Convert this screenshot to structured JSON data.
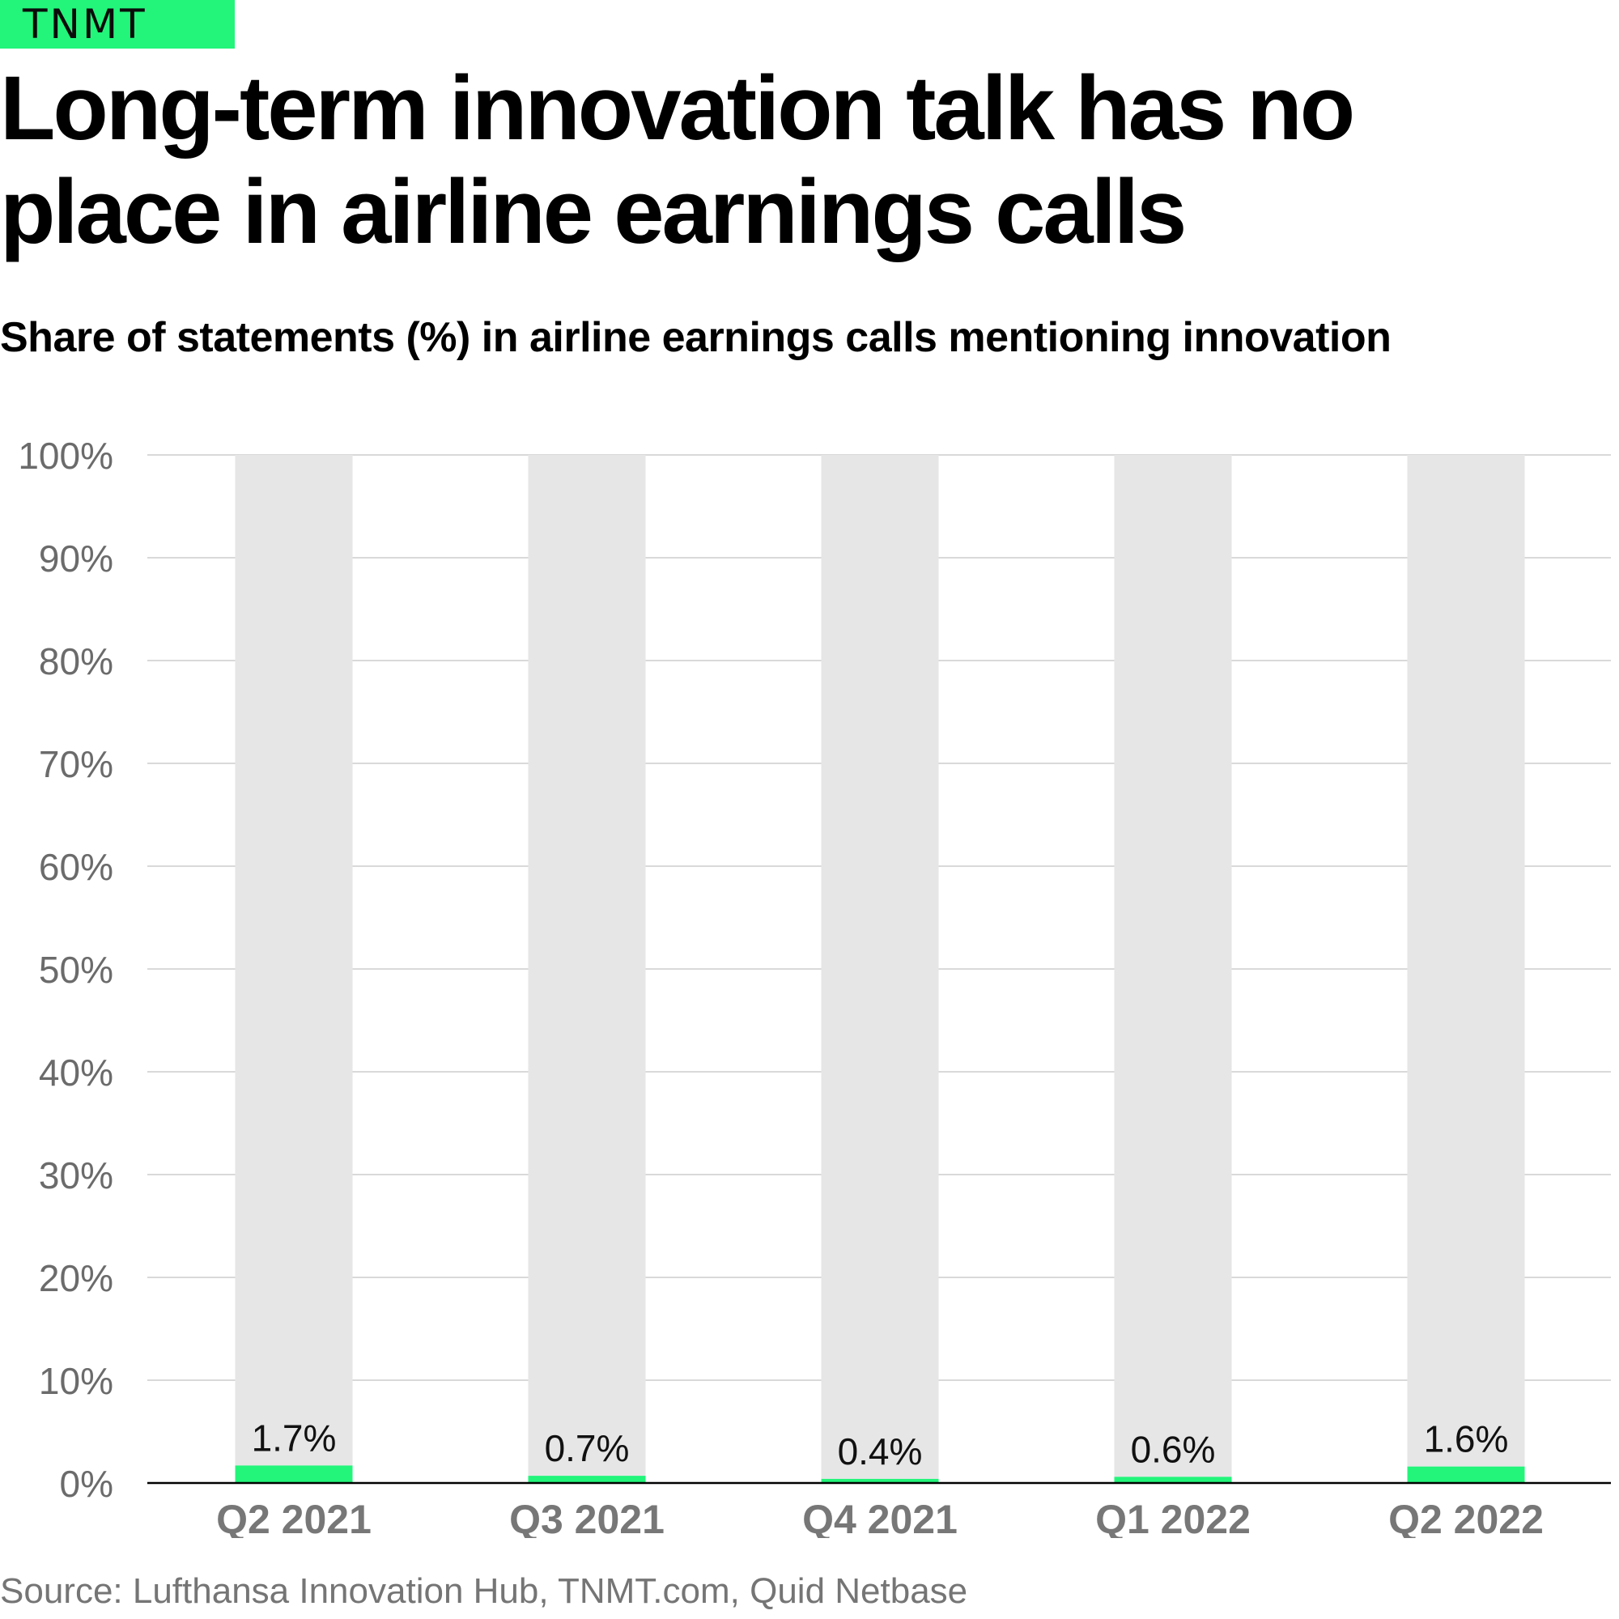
{
  "brand": {
    "logo_text": "TNMT",
    "accent_color": "#22f57a"
  },
  "title": "Long-term innovation talk has no place in airline earnings calls",
  "subtitle": "Share of statements (%) in airline earnings calls mentioning innovation",
  "source": "Source: Lufthansa Innovation Hub, TNMT.com, Quid Netbase",
  "chart_data": {
    "type": "bar",
    "title": "Long-term innovation talk has no place in airline earnings calls",
    "subtitle": "Share of statements (%) in airline earnings calls mentioning innovation",
    "xlabel": "",
    "ylabel": "",
    "categories": [
      "Q2 2021",
      "Q3 2021",
      "Q4 2021",
      "Q1 2022",
      "Q2 2022"
    ],
    "values": [
      1.7,
      0.7,
      0.4,
      0.6,
      1.6
    ],
    "data_labels": [
      "1.7%",
      "0.7%",
      "0.4%",
      "0.6%",
      "1.6%"
    ],
    "background_values": [
      100,
      100,
      100,
      100,
      100
    ],
    "ylim": [
      0,
      100
    ],
    "yticks": [
      0,
      10,
      20,
      30,
      40,
      50,
      60,
      70,
      80,
      90,
      100
    ],
    "ytick_labels": [
      "0%",
      "10%",
      "20%",
      "30%",
      "40%",
      "50%",
      "60%",
      "70%",
      "80%",
      "90%",
      "100%"
    ],
    "grid": true,
    "legend": "none",
    "colors": {
      "bar": "#22f57a",
      "background_bar": "#e6e6e6",
      "grid": "#d9d9d9",
      "axis": "#000000",
      "tick_label": "#6b6b6b",
      "category_label": "#777777",
      "data_label": "#111111"
    }
  }
}
